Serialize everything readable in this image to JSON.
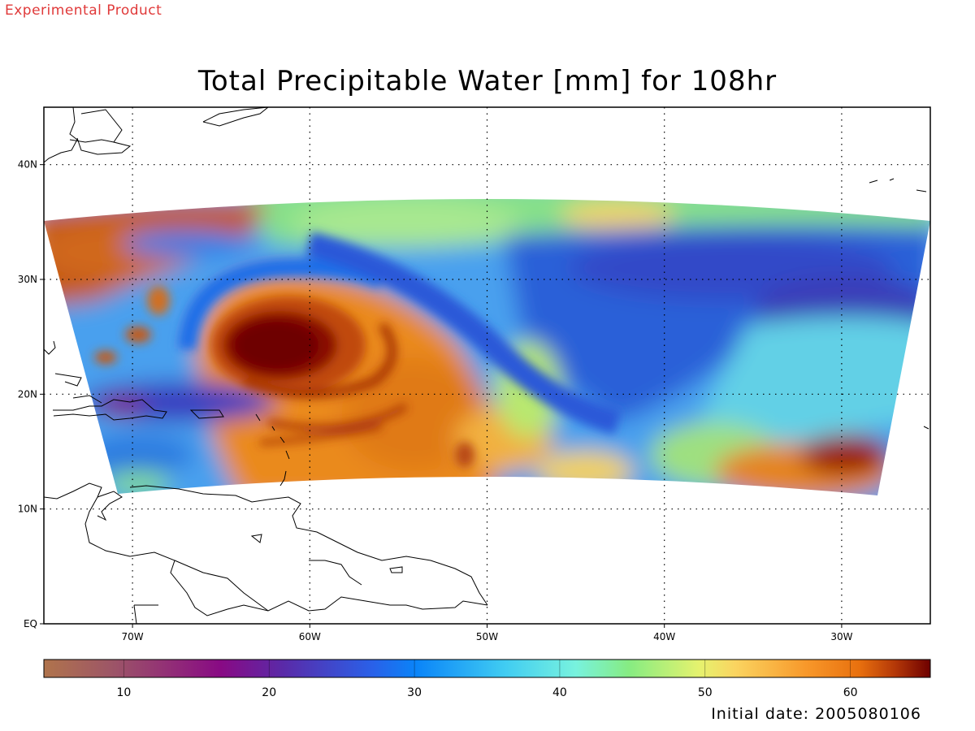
{
  "product_label": "Experimental Product",
  "title": "Total Precipitable Water [mm] for 108hr",
  "initial_date": "Initial date: 2005080106",
  "map": {
    "lon_range": [
      -75,
      -25
    ],
    "lat_range": [
      0,
      45
    ],
    "grid": "dotted",
    "lon_ticks": [
      {
        "value": -70,
        "label": "70W"
      },
      {
        "value": -60,
        "label": "60W"
      },
      {
        "value": -50,
        "label": "50W"
      },
      {
        "value": -40,
        "label": "40W"
      },
      {
        "value": -30,
        "label": "30W"
      }
    ],
    "lat_ticks": [
      {
        "value": 40,
        "label": "40N"
      },
      {
        "value": 30,
        "label": "30N"
      },
      {
        "value": 20,
        "label": "20N"
      },
      {
        "value": 10,
        "label": "10N"
      },
      {
        "value": 0,
        "label": "EQ"
      }
    ]
  },
  "colorbar": {
    "min": 4.5,
    "max": 65.5,
    "ticks": [
      {
        "value": 10,
        "label": "10"
      },
      {
        "value": 20,
        "label": "20"
      },
      {
        "value": 30,
        "label": "30"
      },
      {
        "value": 40,
        "label": "40"
      },
      {
        "value": 50,
        "label": "50"
      },
      {
        "value": 60,
        "label": "60"
      }
    ]
  },
  "field_colors": {
    "very_high": "#7a0000",
    "high": "#c04a10",
    "mid_high": "#ee8a14",
    "mid": "#f2c23a",
    "mid_low": "#9fe07a",
    "low_mid": "#55d4e8",
    "low": "#1a88f0",
    "very_low": "#3a4bd8",
    "minimum": "#6a1d9a"
  }
}
